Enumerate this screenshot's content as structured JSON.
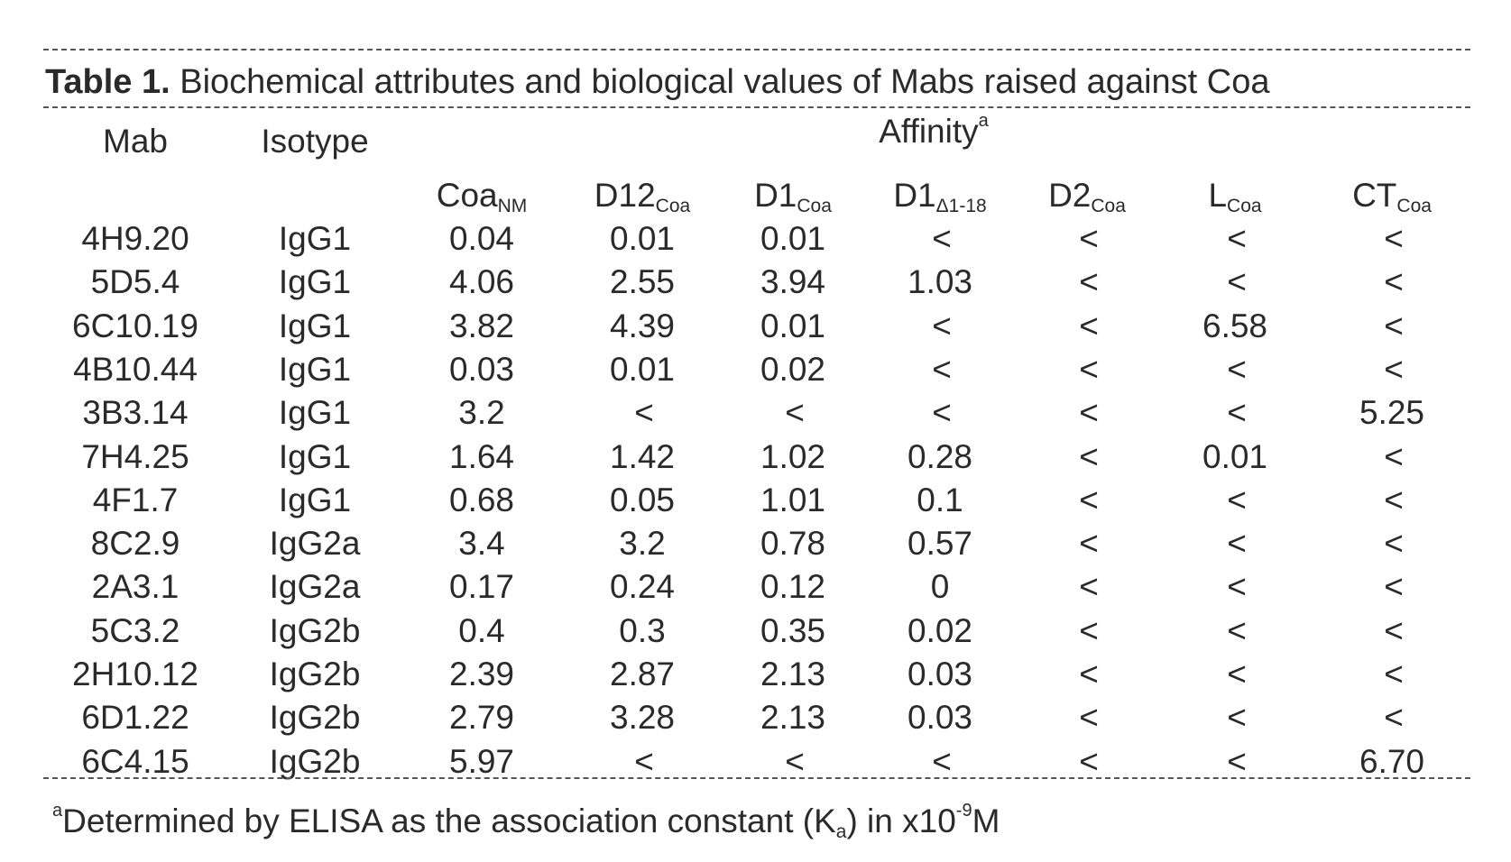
{
  "table": {
    "label": "Table 1.",
    "caption": "Biochemical attributes and biological values of Mabs raised against Coa",
    "headers": {
      "mab": "Mab",
      "isotype": "Isotype",
      "group": "Affinity",
      "group_sup": "a",
      "columns": [
        {
          "main": "Coa",
          "sub": "NM"
        },
        {
          "main": "D12",
          "sub": "Coa"
        },
        {
          "main": "D1",
          "sub": "Coa"
        },
        {
          "main": "D1",
          "sub": "Δ1-18"
        },
        {
          "main": "D2",
          "sub": "Coa"
        },
        {
          "main": "L",
          "sub": "Coa"
        },
        {
          "main": "CT",
          "sub": "Coa"
        }
      ]
    },
    "rows": [
      [
        "4H9.20",
        "IgG1",
        "0.04",
        "0.01",
        "0.01",
        "<",
        "<",
        "<",
        "<"
      ],
      [
        "5D5.4",
        "IgG1",
        "4.06",
        "2.55",
        "3.94",
        "1.03",
        "<",
        "<",
        "<"
      ],
      [
        "6C10.19",
        "IgG1",
        "3.82",
        "4.39",
        "0.01",
        "<",
        "<",
        "6.58",
        "<"
      ],
      [
        "4B10.44",
        "IgG1",
        "0.03",
        "0.01",
        "0.02",
        "<",
        "<",
        "<",
        "<"
      ],
      [
        "3B3.14",
        "IgG1",
        "3.2",
        "<",
        "<",
        "<",
        "<",
        "<",
        "5.25"
      ],
      [
        "7H4.25",
        "IgG1",
        "1.64",
        "1.42",
        "1.02",
        "0.28",
        "<",
        "0.01",
        "<"
      ],
      [
        "4F1.7",
        "IgG1",
        "0.68",
        "0.05",
        "1.01",
        "0.1",
        "<",
        "<",
        "<"
      ],
      [
        "8C2.9",
        "IgG2a",
        "3.4",
        "3.2",
        "0.78",
        "0.57",
        "<",
        "<",
        "<"
      ],
      [
        "2A3.1",
        "IgG2a",
        "0.17",
        "0.24",
        "0.12",
        "0",
        "<",
        "<",
        "<"
      ],
      [
        "5C3.2",
        "IgG2b",
        "0.4",
        "0.3",
        "0.35",
        "0.02",
        "<",
        "<",
        "<"
      ],
      [
        "2H10.12",
        "IgG2b",
        "2.39",
        "2.87",
        "2.13",
        "0.03",
        "<",
        "<",
        "<"
      ],
      [
        "6D1.22",
        "IgG2b",
        "2.79",
        "3.28",
        "2.13",
        "0.03",
        "<",
        "<",
        "<"
      ],
      [
        "6C4.15",
        "IgG2b",
        "5.97",
        "<",
        "<",
        "<",
        "<",
        "<",
        "6.70"
      ]
    ],
    "footnote": {
      "marker": "a",
      "text1": "Determined by ELISA as the association constant (K",
      "sub": "a",
      "text2": ") in x10",
      "exp": "-9",
      "text3": "M"
    }
  }
}
